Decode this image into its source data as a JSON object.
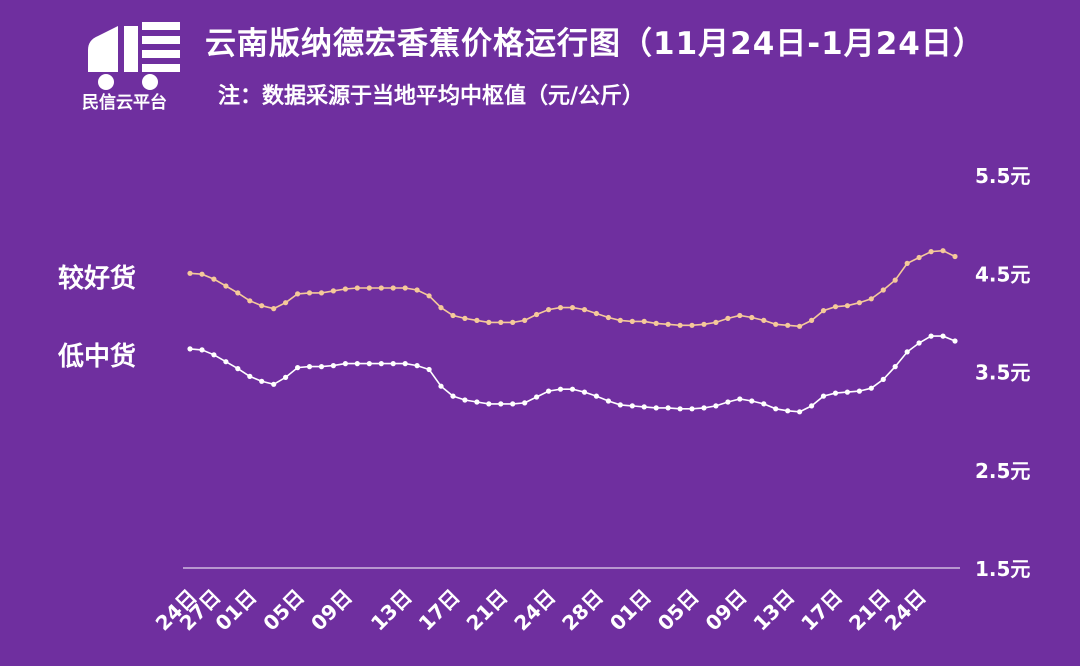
{
  "logo": {
    "text": "民信云平台"
  },
  "title": "云南版纳德宏香蕉价格运行图（11月24日-1月24日）",
  "subtitle": "注：数据采源于当地平均中枢值（元/公斤）",
  "colors": {
    "background": "#6f2f9f",
    "good_series": "#f5c99a",
    "low_series": "#ffffff",
    "axis": "#ffffff"
  },
  "chart_data": {
    "type": "line",
    "y_ticks": [
      "5.5元",
      "4.5元",
      "3.5元",
      "2.5元",
      "1.5元"
    ],
    "ylim": [
      1.5,
      5.5
    ],
    "y_axis_side": "right",
    "x_tick_labels": [
      "24日",
      "27日",
      "01日",
      "05日",
      "09日",
      "13日",
      "17日",
      "21日",
      "24日",
      "28日",
      "01日",
      "05日",
      "09日",
      "13日",
      "17日",
      "21日",
      "24日"
    ],
    "x_tick_index": [
      0,
      2,
      5,
      9,
      13,
      18,
      22,
      26,
      30,
      34,
      38,
      42,
      46,
      50,
      54,
      58,
      61
    ],
    "grid": false,
    "series": [
      {
        "name": "较好货",
        "values": [
          4.5,
          4.49,
          4.44,
          4.37,
          4.3,
          4.22,
          4.17,
          4.14,
          4.2,
          4.29,
          4.3,
          4.3,
          4.32,
          4.34,
          4.35,
          4.35,
          4.35,
          4.35,
          4.35,
          4.33,
          4.27,
          4.15,
          4.07,
          4.04,
          4.02,
          4.0,
          4.0,
          4.0,
          4.02,
          4.08,
          4.13,
          4.15,
          4.15,
          4.13,
          4.09,
          4.05,
          4.02,
          4.01,
          4.01,
          3.99,
          3.98,
          3.97,
          3.97,
          3.98,
          4.0,
          4.04,
          4.07,
          4.05,
          4.02,
          3.98,
          3.97,
          3.96,
          4.02,
          4.12,
          4.16,
          4.17,
          4.2,
          4.24,
          4.33,
          4.43,
          4.6,
          4.66,
          4.72,
          4.73,
          4.67
        ]
      },
      {
        "name": "低中货",
        "values": [
          3.73,
          3.72,
          3.67,
          3.6,
          3.53,
          3.45,
          3.4,
          3.37,
          3.44,
          3.54,
          3.55,
          3.55,
          3.56,
          3.58,
          3.58,
          3.58,
          3.58,
          3.58,
          3.58,
          3.56,
          3.52,
          3.35,
          3.25,
          3.21,
          3.19,
          3.17,
          3.17,
          3.17,
          3.18,
          3.24,
          3.3,
          3.32,
          3.32,
          3.29,
          3.25,
          3.2,
          3.16,
          3.15,
          3.14,
          3.13,
          3.13,
          3.12,
          3.12,
          3.13,
          3.15,
          3.19,
          3.22,
          3.2,
          3.17,
          3.12,
          3.1,
          3.09,
          3.15,
          3.25,
          3.28,
          3.29,
          3.3,
          3.33,
          3.42,
          3.55,
          3.7,
          3.79,
          3.86,
          3.86,
          3.81
        ]
      }
    ]
  }
}
